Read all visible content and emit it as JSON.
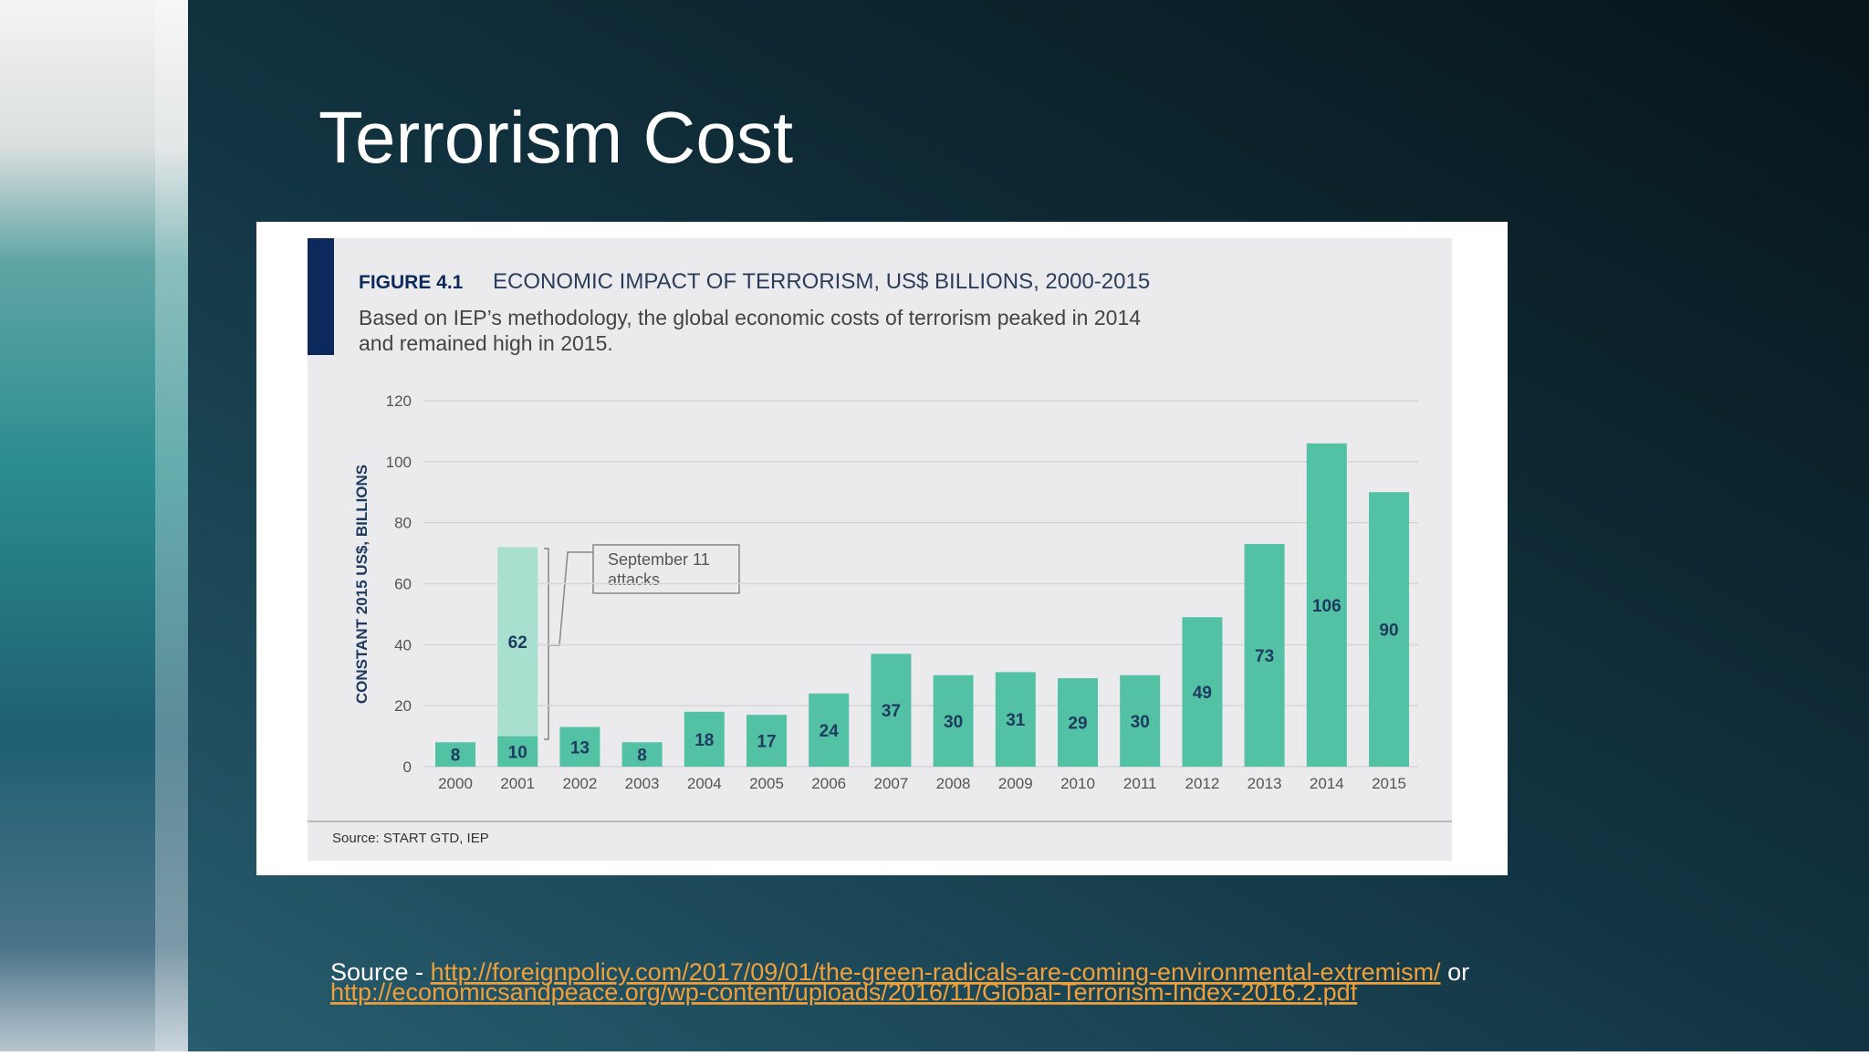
{
  "slide": {
    "title": "Terrorism Cost"
  },
  "chart_data": {
    "type": "bar",
    "figure_label": "FIGURE 4.1",
    "title": "ECONOMIC IMPACT OF TERRORISM, US$ BILLIONS, 2000-2015",
    "subtitle": [
      "Based on IEP’s methodology, the global economic costs of terrorism peaked in 2014",
      "and remained high in 2015."
    ],
    "ylabel": "CONSTANT 2015 US$, BILLIONS",
    "categories": [
      "2000",
      "2001",
      "2002",
      "2003",
      "2004",
      "2005",
      "2006",
      "2007",
      "2008",
      "2009",
      "2010",
      "2011",
      "2012",
      "2013",
      "2014",
      "2015"
    ],
    "series": [
      {
        "color": "#52c1a4",
        "values": [
          8,
          10,
          13,
          8,
          18,
          17,
          24,
          37,
          30,
          31,
          29,
          30,
          49,
          73,
          106,
          90
        ]
      },
      {
        "color": "#a9dfcf",
        "values": [
          null,
          62,
          null,
          null,
          null,
          null,
          null,
          null,
          null,
          null,
          null,
          null,
          null,
          null,
          null,
          null
        ]
      }
    ],
    "ylim": [
      0,
      120
    ],
    "yticks": [
      0,
      20,
      40,
      60,
      80,
      100,
      120
    ],
    "grid": true,
    "annotation": [
      "September 11",
      "attacks"
    ],
    "source": "Source: START GTD, IEP"
  },
  "footer": {
    "prefix": "Source -",
    "link1": "http://foreignpolicy.com/2017/09/01/the-green-radicals-are-coming-environmental-extremism/",
    "or": "or",
    "link2": "http://economicsandpeace.org/wp-content/uploads/2016/11/Global-Terrorism-Index-2016.2.pdf"
  }
}
